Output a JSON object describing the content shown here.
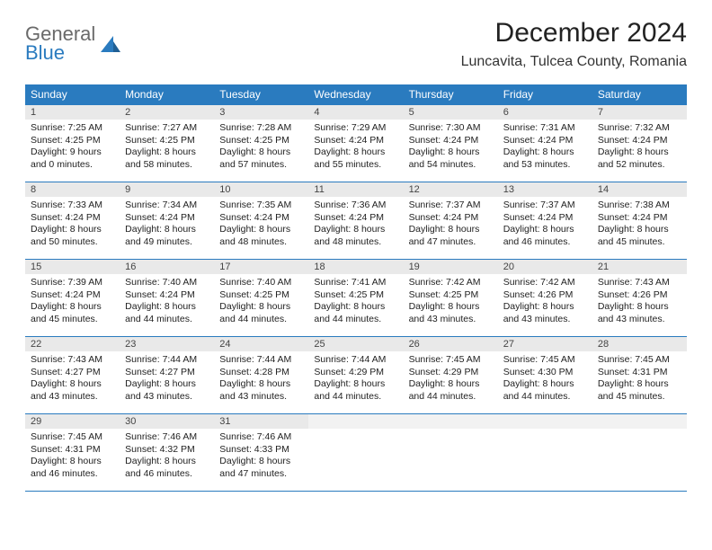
{
  "brand": {
    "word1": "General",
    "word2": "Blue"
  },
  "title": "December 2024",
  "location": "Luncavita, Tulcea County, Romania",
  "colors": {
    "header_bg": "#2a7bbf",
    "header_text": "#ffffff",
    "daynum_bg": "#e9e9e9",
    "border": "#2a7bbf",
    "logo_gray": "#6a6a6a",
    "logo_blue": "#2a7bbf"
  },
  "weekdays": [
    "Sunday",
    "Monday",
    "Tuesday",
    "Wednesday",
    "Thursday",
    "Friday",
    "Saturday"
  ],
  "days": [
    {
      "n": "1",
      "sunrise": "7:25 AM",
      "sunset": "4:25 PM",
      "daylight": "9 hours and 0 minutes."
    },
    {
      "n": "2",
      "sunrise": "7:27 AM",
      "sunset": "4:25 PM",
      "daylight": "8 hours and 58 minutes."
    },
    {
      "n": "3",
      "sunrise": "7:28 AM",
      "sunset": "4:25 PM",
      "daylight": "8 hours and 57 minutes."
    },
    {
      "n": "4",
      "sunrise": "7:29 AM",
      "sunset": "4:24 PM",
      "daylight": "8 hours and 55 minutes."
    },
    {
      "n": "5",
      "sunrise": "7:30 AM",
      "sunset": "4:24 PM",
      "daylight": "8 hours and 54 minutes."
    },
    {
      "n": "6",
      "sunrise": "7:31 AM",
      "sunset": "4:24 PM",
      "daylight": "8 hours and 53 minutes."
    },
    {
      "n": "7",
      "sunrise": "7:32 AM",
      "sunset": "4:24 PM",
      "daylight": "8 hours and 52 minutes."
    },
    {
      "n": "8",
      "sunrise": "7:33 AM",
      "sunset": "4:24 PM",
      "daylight": "8 hours and 50 minutes."
    },
    {
      "n": "9",
      "sunrise": "7:34 AM",
      "sunset": "4:24 PM",
      "daylight": "8 hours and 49 minutes."
    },
    {
      "n": "10",
      "sunrise": "7:35 AM",
      "sunset": "4:24 PM",
      "daylight": "8 hours and 48 minutes."
    },
    {
      "n": "11",
      "sunrise": "7:36 AM",
      "sunset": "4:24 PM",
      "daylight": "8 hours and 48 minutes."
    },
    {
      "n": "12",
      "sunrise": "7:37 AM",
      "sunset": "4:24 PM",
      "daylight": "8 hours and 47 minutes."
    },
    {
      "n": "13",
      "sunrise": "7:37 AM",
      "sunset": "4:24 PM",
      "daylight": "8 hours and 46 minutes."
    },
    {
      "n": "14",
      "sunrise": "7:38 AM",
      "sunset": "4:24 PM",
      "daylight": "8 hours and 45 minutes."
    },
    {
      "n": "15",
      "sunrise": "7:39 AM",
      "sunset": "4:24 PM",
      "daylight": "8 hours and 45 minutes."
    },
    {
      "n": "16",
      "sunrise": "7:40 AM",
      "sunset": "4:24 PM",
      "daylight": "8 hours and 44 minutes."
    },
    {
      "n": "17",
      "sunrise": "7:40 AM",
      "sunset": "4:25 PM",
      "daylight": "8 hours and 44 minutes."
    },
    {
      "n": "18",
      "sunrise": "7:41 AM",
      "sunset": "4:25 PM",
      "daylight": "8 hours and 44 minutes."
    },
    {
      "n": "19",
      "sunrise": "7:42 AM",
      "sunset": "4:25 PM",
      "daylight": "8 hours and 43 minutes."
    },
    {
      "n": "20",
      "sunrise": "7:42 AM",
      "sunset": "4:26 PM",
      "daylight": "8 hours and 43 minutes."
    },
    {
      "n": "21",
      "sunrise": "7:43 AM",
      "sunset": "4:26 PM",
      "daylight": "8 hours and 43 minutes."
    },
    {
      "n": "22",
      "sunrise": "7:43 AM",
      "sunset": "4:27 PM",
      "daylight": "8 hours and 43 minutes."
    },
    {
      "n": "23",
      "sunrise": "7:44 AM",
      "sunset": "4:27 PM",
      "daylight": "8 hours and 43 minutes."
    },
    {
      "n": "24",
      "sunrise": "7:44 AM",
      "sunset": "4:28 PM",
      "daylight": "8 hours and 43 minutes."
    },
    {
      "n": "25",
      "sunrise": "7:44 AM",
      "sunset": "4:29 PM",
      "daylight": "8 hours and 44 minutes."
    },
    {
      "n": "26",
      "sunrise": "7:45 AM",
      "sunset": "4:29 PM",
      "daylight": "8 hours and 44 minutes."
    },
    {
      "n": "27",
      "sunrise": "7:45 AM",
      "sunset": "4:30 PM",
      "daylight": "8 hours and 44 minutes."
    },
    {
      "n": "28",
      "sunrise": "7:45 AM",
      "sunset": "4:31 PM",
      "daylight": "8 hours and 45 minutes."
    },
    {
      "n": "29",
      "sunrise": "7:45 AM",
      "sunset": "4:31 PM",
      "daylight": "8 hours and 46 minutes."
    },
    {
      "n": "30",
      "sunrise": "7:46 AM",
      "sunset": "4:32 PM",
      "daylight": "8 hours and 46 minutes."
    },
    {
      "n": "31",
      "sunrise": "7:46 AM",
      "sunset": "4:33 PM",
      "daylight": "8 hours and 47 minutes."
    }
  ],
  "labels": {
    "sunrise": "Sunrise: ",
    "sunset": "Sunset: ",
    "daylight": "Daylight: "
  }
}
